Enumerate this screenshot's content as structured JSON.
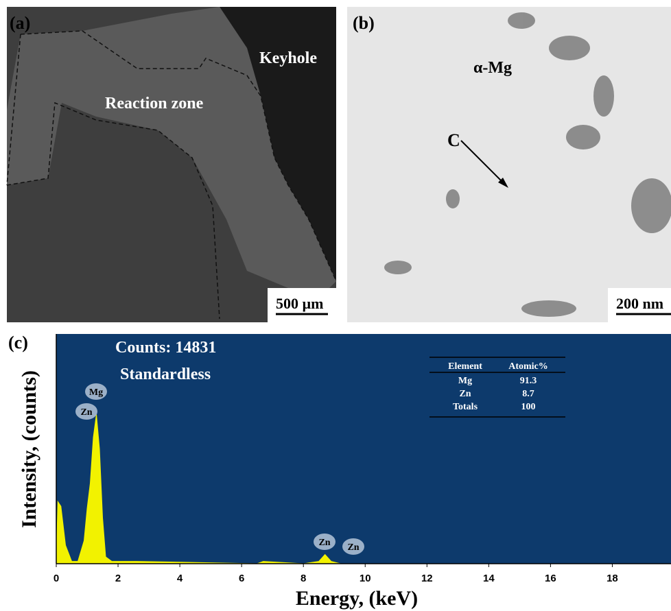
{
  "panels": {
    "a": {
      "label": "(a)",
      "annotations": [
        "Keyhole",
        "Reaction zone"
      ],
      "scale_bar": "500 µm"
    },
    "b": {
      "label": "(b)",
      "annotations": [
        "α-Mg",
        "C"
      ],
      "scale_bar": "200 nm"
    }
  },
  "chart_data": {
    "type": "area",
    "label": "(c)",
    "annotations": [
      "Counts: 14831",
      "Standardless"
    ],
    "x_label": "Energy, (keV)",
    "y_label": "Intensity, (counts)",
    "x": [
      0,
      0.05,
      0.15,
      0.3,
      0.5,
      0.7,
      0.9,
      1.0,
      1.1,
      1.2,
      1.3,
      1.4,
      1.5,
      1.6,
      1.8,
      2.6,
      6.5,
      6.7,
      8.0,
      8.5,
      8.7,
      8.9,
      9.2,
      19.9
    ],
    "values": [
      0,
      27,
      25,
      8,
      1,
      1,
      10,
      24,
      35,
      55,
      65,
      50,
      20,
      3,
      1,
      1,
      0,
      1,
      0,
      1,
      4,
      1,
      0,
      0
    ],
    "color": "#f2f200",
    "background": "#0d3a6c",
    "xlim": [
      0,
      19.9
    ],
    "ylim": [
      0,
      100
    ],
    "xticks": [
      0,
      2,
      4,
      6,
      8,
      10,
      12,
      14,
      16,
      18
    ],
    "peak_labels": [
      "Mg",
      "Zn",
      "Zn",
      "Zn"
    ],
    "table": {
      "header": [
        "Element",
        "Atomic%"
      ],
      "rows": [
        [
          "Mg",
          91.3
        ],
        [
          "Zn",
          8.7
        ],
        [
          "Totals",
          100
        ]
      ]
    }
  }
}
